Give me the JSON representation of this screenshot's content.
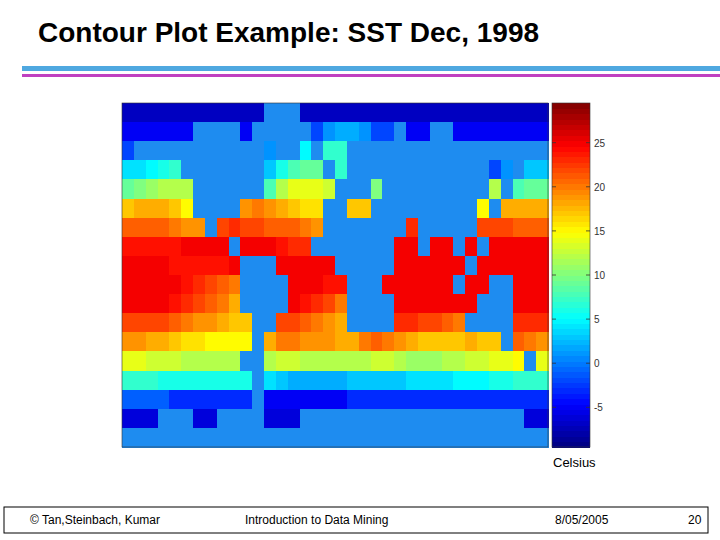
{
  "title": "Contour Plot Example: SST Dec, 1998",
  "chart_data": {
    "type": "heatmap",
    "cells": [
      [
        -7,
        -7,
        -7,
        -7,
        -7,
        -7,
        -7,
        -7,
        -7,
        -7,
        -7,
        -7,
        null,
        null,
        null,
        -7,
        -7,
        -7,
        -7,
        -7,
        -7,
        -7,
        -7,
        -7,
        -7,
        -7,
        -7,
        -7,
        -7,
        -7,
        -7,
        -7,
        -7,
        -7,
        -7,
        -7
      ],
      [
        -5,
        -5,
        -5,
        -5,
        -5,
        -5,
        null,
        null,
        null,
        null,
        -5,
        null,
        null,
        null,
        null,
        null,
        -2,
        1,
        2,
        2,
        1,
        -2,
        -2,
        null,
        -5,
        -5,
        null,
        null,
        -5,
        -5,
        -5,
        -5,
        -5,
        -5,
        -5,
        -5
      ],
      [
        -2,
        null,
        null,
        null,
        null,
        null,
        null,
        null,
        null,
        null,
        null,
        null,
        1,
        null,
        null,
        5,
        null,
        7,
        7,
        null,
        null,
        null,
        null,
        null,
        null,
        null,
        null,
        null,
        null,
        null,
        null,
        null,
        null,
        null,
        null,
        null
      ],
      [
        4,
        4,
        5,
        6,
        7,
        null,
        null,
        null,
        null,
        null,
        null,
        null,
        3,
        6,
        8,
        9,
        9,
        null,
        7,
        null,
        null,
        null,
        null,
        null,
        null,
        null,
        null,
        null,
        null,
        null,
        null,
        -2,
        1,
        null,
        3,
        3
      ],
      [
        9,
        10,
        11,
        12,
        12,
        12,
        null,
        null,
        null,
        null,
        null,
        null,
        8,
        12,
        14,
        14,
        14,
        13,
        null,
        null,
        null,
        10,
        null,
        null,
        null,
        null,
        null,
        null,
        null,
        null,
        null,
        12,
        null,
        8,
        9,
        9
      ],
      [
        17,
        18,
        18,
        18,
        17,
        15,
        null,
        null,
        null,
        null,
        19,
        20,
        19,
        18,
        17,
        16,
        16,
        null,
        null,
        17,
        17,
        null,
        null,
        null,
        null,
        null,
        null,
        null,
        null,
        null,
        15,
        null,
        18,
        18,
        18,
        18
      ],
      [
        21,
        21,
        21,
        21,
        20,
        19,
        19,
        null,
        22,
        23,
        22,
        22,
        21,
        21,
        21,
        20,
        19,
        null,
        null,
        null,
        null,
        null,
        null,
        null,
        23,
        null,
        null,
        null,
        null,
        null,
        22,
        22,
        22,
        21,
        21,
        21
      ],
      [
        24,
        24,
        24,
        24,
        24,
        25,
        25,
        25,
        25,
        null,
        25,
        25,
        25,
        24,
        23,
        23,
        null,
        null,
        null,
        null,
        null,
        null,
        null,
        25,
        25,
        null,
        25,
        25,
        null,
        25,
        null,
        25,
        25,
        25,
        25,
        25
      ],
      [
        25,
        25,
        25,
        25,
        24,
        24,
        24,
        24,
        24,
        25,
        null,
        null,
        null,
        25,
        25,
        25,
        25,
        25,
        null,
        null,
        null,
        null,
        null,
        25,
        25,
        25,
        25,
        25,
        25,
        null,
        25,
        25,
        25,
        25,
        25,
        25
      ],
      [
        25,
        25,
        25,
        25,
        25,
        24,
        23,
        22,
        21,
        20,
        null,
        null,
        null,
        null,
        25,
        25,
        25,
        24,
        24,
        null,
        null,
        null,
        25,
        25,
        25,
        25,
        25,
        25,
        null,
        25,
        25,
        null,
        null,
        25,
        25,
        25
      ],
      [
        25,
        25,
        25,
        25,
        24,
        23,
        22,
        21,
        20,
        18,
        null,
        null,
        null,
        null,
        25,
        24,
        23,
        22,
        20,
        null,
        null,
        null,
        null,
        25,
        25,
        25,
        25,
        25,
        25,
        25,
        null,
        null,
        null,
        25,
        25,
        25
      ],
      [
        22,
        22,
        22,
        22,
        21,
        20,
        19,
        19,
        18,
        17,
        17,
        null,
        null,
        22,
        22,
        21,
        20,
        19,
        18,
        null,
        null,
        null,
        null,
        23,
        23,
        22,
        22,
        21,
        20,
        null,
        null,
        null,
        null,
        23,
        23,
        23
      ],
      [
        19,
        19,
        18,
        18,
        17,
        16,
        16,
        15,
        15,
        15,
        15,
        null,
        18,
        20,
        20,
        19,
        19,
        19,
        18,
        18,
        20,
        21,
        20,
        19,
        18,
        17,
        17,
        17,
        17,
        18,
        17,
        17,
        null,
        21,
        20,
        19
      ],
      [
        14,
        14,
        13,
        13,
        13,
        12,
        12,
        12,
        12,
        12,
        null,
        null,
        12,
        13,
        13,
        12,
        12,
        12,
        12,
        12,
        12,
        13,
        13,
        12,
        11,
        11,
        11,
        12,
        12,
        13,
        13,
        14,
        14,
        15,
        null,
        14
      ],
      [
        7,
        7,
        7,
        6,
        6,
        6,
        6,
        6,
        6,
        6,
        6,
        null,
        4,
        3,
        2,
        2,
        2,
        2,
        2,
        3,
        3,
        3,
        3,
        3,
        4,
        4,
        4,
        4,
        5,
        5,
        5,
        6,
        6,
        7,
        7,
        7
      ],
      [
        -1,
        -1,
        -1,
        -1,
        -3,
        -3,
        -3,
        -3,
        -3,
        -3,
        -3,
        null,
        -5,
        -5,
        -5,
        -5,
        -5,
        -5,
        -5,
        -3,
        -3,
        -3,
        -3,
        -3,
        -3,
        -3,
        -3,
        -3,
        -3,
        -3,
        -3,
        -3,
        -3,
        -3,
        -3,
        -3
      ],
      [
        -6,
        -6,
        -6,
        null,
        null,
        null,
        -6,
        -6,
        null,
        null,
        null,
        null,
        -6,
        -6,
        -6,
        null,
        null,
        null,
        null,
        null,
        null,
        null,
        null,
        null,
        null,
        null,
        null,
        null,
        null,
        null,
        null,
        null,
        null,
        null,
        -6,
        -6
      ],
      [
        null,
        null,
        null,
        null,
        null,
        null,
        null,
        null,
        null,
        null,
        null,
        null,
        null,
        null,
        null,
        null,
        null,
        null,
        null,
        null,
        null,
        null,
        null,
        null,
        null,
        null,
        null,
        null,
        null,
        null,
        null,
        null,
        null,
        null,
        null,
        null
      ]
    ],
    "colorbar": {
      "label": "Celsius",
      "range": [
        -9.5,
        29.5
      ],
      "ticks": [
        25,
        20,
        15,
        10,
        5,
        0,
        -5
      ]
    }
  },
  "footer": {
    "copyright": "© Tan,Steinbach, Kumar",
    "course": "Introduction to Data Mining",
    "date": "8/05/2005",
    "page": 20
  }
}
